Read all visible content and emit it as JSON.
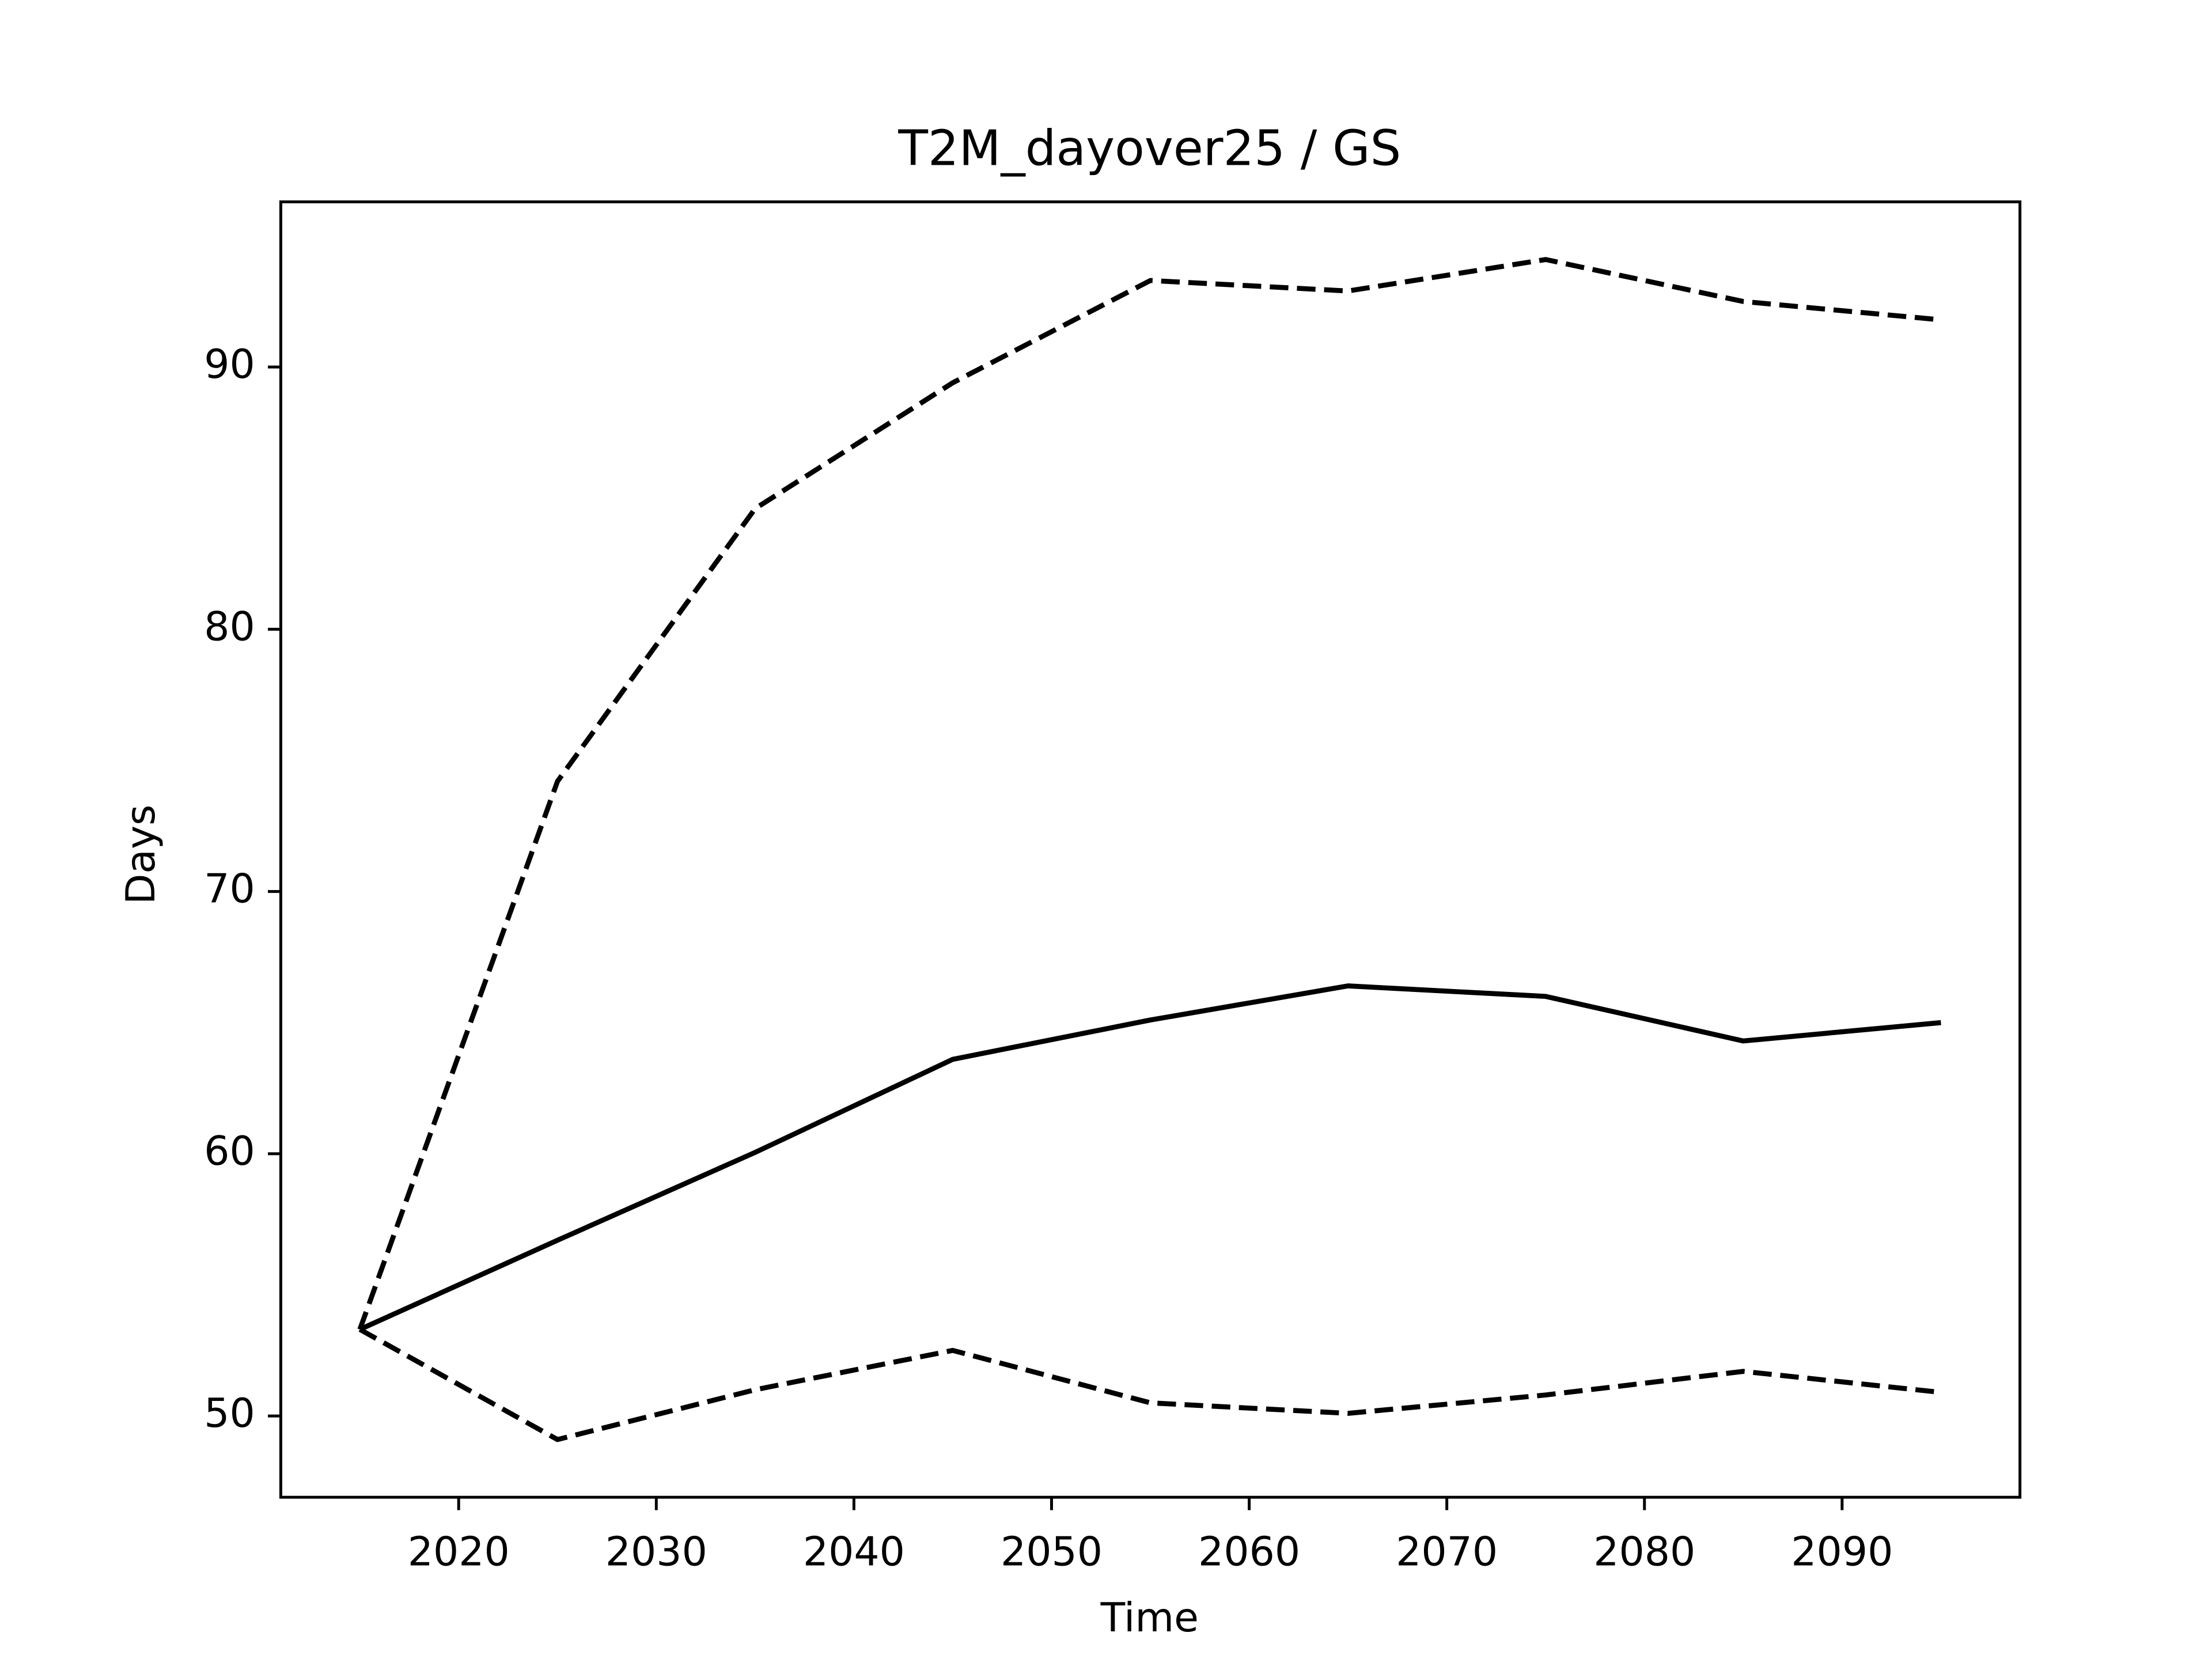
{
  "chart_data": {
    "type": "line",
    "title": "T2M_dayover25 / GS",
    "xlabel": "Time",
    "ylabel": "Days",
    "x": [
      2015,
      2025,
      2035,
      2045,
      2055,
      2065,
      2075,
      2085,
      2095
    ],
    "series": [
      {
        "color": "#000000",
        "linestyle": "solid",
        "values": [
          53.3,
          56.7,
          60.05,
          63.6,
          65.1,
          66.4,
          66.0,
          64.3,
          65.0
        ]
      },
      {
        "color": "#000000",
        "linestyle": "dashed",
        "values": [
          53.3,
          74.2,
          84.6,
          89.4,
          93.3,
          92.9,
          94.1,
          92.5,
          91.8
        ]
      },
      {
        "color": "#000000",
        "linestyle": "dashed",
        "values": [
          53.3,
          49.1,
          51.0,
          52.5,
          50.5,
          50.1,
          50.8,
          51.7,
          50.9
        ]
      }
    ],
    "xlim": [
      2011,
      2099
    ],
    "xticks": [
      2020,
      2030,
      2040,
      2050,
      2060,
      2070,
      2080,
      2090
    ],
    "ylim": [
      46.9,
      96.3
    ],
    "yticks": [
      50,
      60,
      70,
      80,
      90
    ],
    "grid": false
  }
}
